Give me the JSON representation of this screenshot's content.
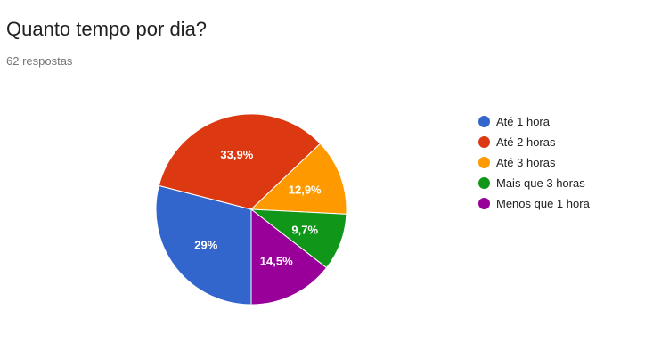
{
  "question": {
    "title": "Quanto tempo por dia?",
    "response_count": "62 respostas"
  },
  "chart_data": {
    "type": "pie",
    "title": "Quanto tempo por dia?",
    "legend_position": "right",
    "start_angle_deg": 90,
    "slices": [
      {
        "label": "Até 1 hora",
        "value": 29.0,
        "display": "29%",
        "color": "#3366cc"
      },
      {
        "label": "Até 2 horas",
        "value": 33.9,
        "display": "33,9%",
        "color": "#dc3912"
      },
      {
        "label": "Até 3 horas",
        "value": 12.9,
        "display": "12,9%",
        "color": "#ff9900"
      },
      {
        "label": "Mais que 3 horas",
        "value": 9.7,
        "display": "9,7%",
        "color": "#109618"
      },
      {
        "label": "Menos que 1 hora",
        "value": 14.5,
        "display": "14,5%",
        "color": "#990099"
      }
    ]
  }
}
